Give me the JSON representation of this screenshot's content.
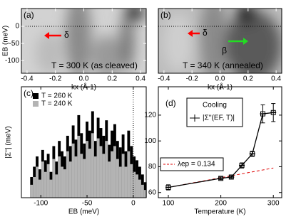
{
  "chart_data": [
    {
      "type": "image",
      "label": "(a)",
      "xlabel": "kx (Å-1)",
      "ylabel": "EB (meV)",
      "xlim": [
        -0.44,
        0.44
      ],
      "xticks": [
        -0.4,
        -0.2,
        {
          "value": 0,
          "label": "0.0"
        },
        0.2,
        0.4
      ],
      "ylim": [
        -137,
        52
      ],
      "yticks": [
        -100,
        -50,
        0
      ],
      "hline": 0,
      "annotations": [
        {
          "text": "δ",
          "color": "#ff0000"
        }
      ],
      "caption": "T = 300 K (as cleaved)"
    },
    {
      "type": "image",
      "label": "(b)",
      "xlabel": "kx (Å-1)",
      "xlim": [
        -0.44,
        0.44
      ],
      "xticks": [
        -0.4,
        -0.2,
        {
          "value": 0,
          "label": "0.0"
        },
        0.2,
        0.4
      ],
      "ylim": [
        -137,
        52
      ],
      "hline": 0,
      "annotations": [
        {
          "text": "δ",
          "color": "#ff0000"
        },
        {
          "text": "β",
          "color": "#22dd22"
        }
      ],
      "caption": "T = 340 K (annealed)"
    },
    {
      "type": "bar",
      "label": "(c)",
      "xlabel": "EB (meV)",
      "ylabel": "|Σ''| (meV)",
      "xlim": [
        -121,
        14
      ],
      "xticks": [
        -100,
        -50,
        0
      ],
      "ylim": [
        56,
        142
      ],
      "vline": 0,
      "x": [
        -110,
        -107,
        -104,
        -101,
        -98,
        -95,
        -92,
        -89,
        -86,
        -83,
        -80,
        -77,
        -74,
        -71,
        -68,
        -65,
        -62,
        -59,
        -56,
        -53,
        -50,
        -47,
        -44,
        -41,
        -38,
        -35,
        -32,
        -29,
        -26,
        -23,
        -20,
        -17,
        -14,
        -11,
        -8,
        -5,
        -2,
        1,
        4,
        7,
        10,
        13
      ],
      "series": [
        {
          "name": "T = 260 K",
          "color": "#000000",
          "values": [
            72,
            80,
            88,
            78,
            93,
            85,
            90,
            76,
            96,
            84,
            100,
            92,
            88,
            104,
            96,
            112,
            101,
            120,
            106,
            98,
            115,
            108,
            123,
            100,
            118,
            110,
            104,
            116,
            97,
            108,
            113,
            100,
            95,
            105,
            92,
            108,
            96,
            88,
            85,
            80,
            74,
            68
          ]
        },
        {
          "name": "T = 240 K",
          "color": "#b4b4b4",
          "values": [
            66,
            72,
            80,
            70,
            84,
            76,
            82,
            70,
            86,
            74,
            88,
            80,
            78,
            92,
            84,
            98,
            88,
            104,
            90,
            86,
            100,
            94,
            106,
            88,
            102,
            96,
            90,
            100,
            84,
            92,
            96,
            86,
            80,
            90,
            80,
            92,
            82,
            76,
            74,
            70,
            66,
            62
          ]
        }
      ]
    },
    {
      "type": "line",
      "label": "(d)",
      "xlabel": "Temperature (K)",
      "xlim": [
        81,
        316
      ],
      "xticks": [
        100,
        200,
        300
      ],
      "ylim": [
        56,
        142
      ],
      "yticks": [
        60,
        80,
        100,
        120
      ],
      "legend_title": "Cooling",
      "x": [
        100,
        200,
        220,
        240,
        260,
        280,
        300
      ],
      "series": [
        {
          "name": "|Σ''(EF, T)|",
          "color": "#000000",
          "values": [
            64,
            71,
            72,
            81,
            90,
            121,
            122
          ],
          "yerr": [
            2,
            1,
            1,
            2,
            2,
            7,
            7
          ]
        }
      ],
      "fit": {
        "name": "λep = 0.134",
        "color": "#dd0000",
        "x": [
          100,
          300
        ],
        "values": [
          64,
          79
        ]
      }
    }
  ]
}
